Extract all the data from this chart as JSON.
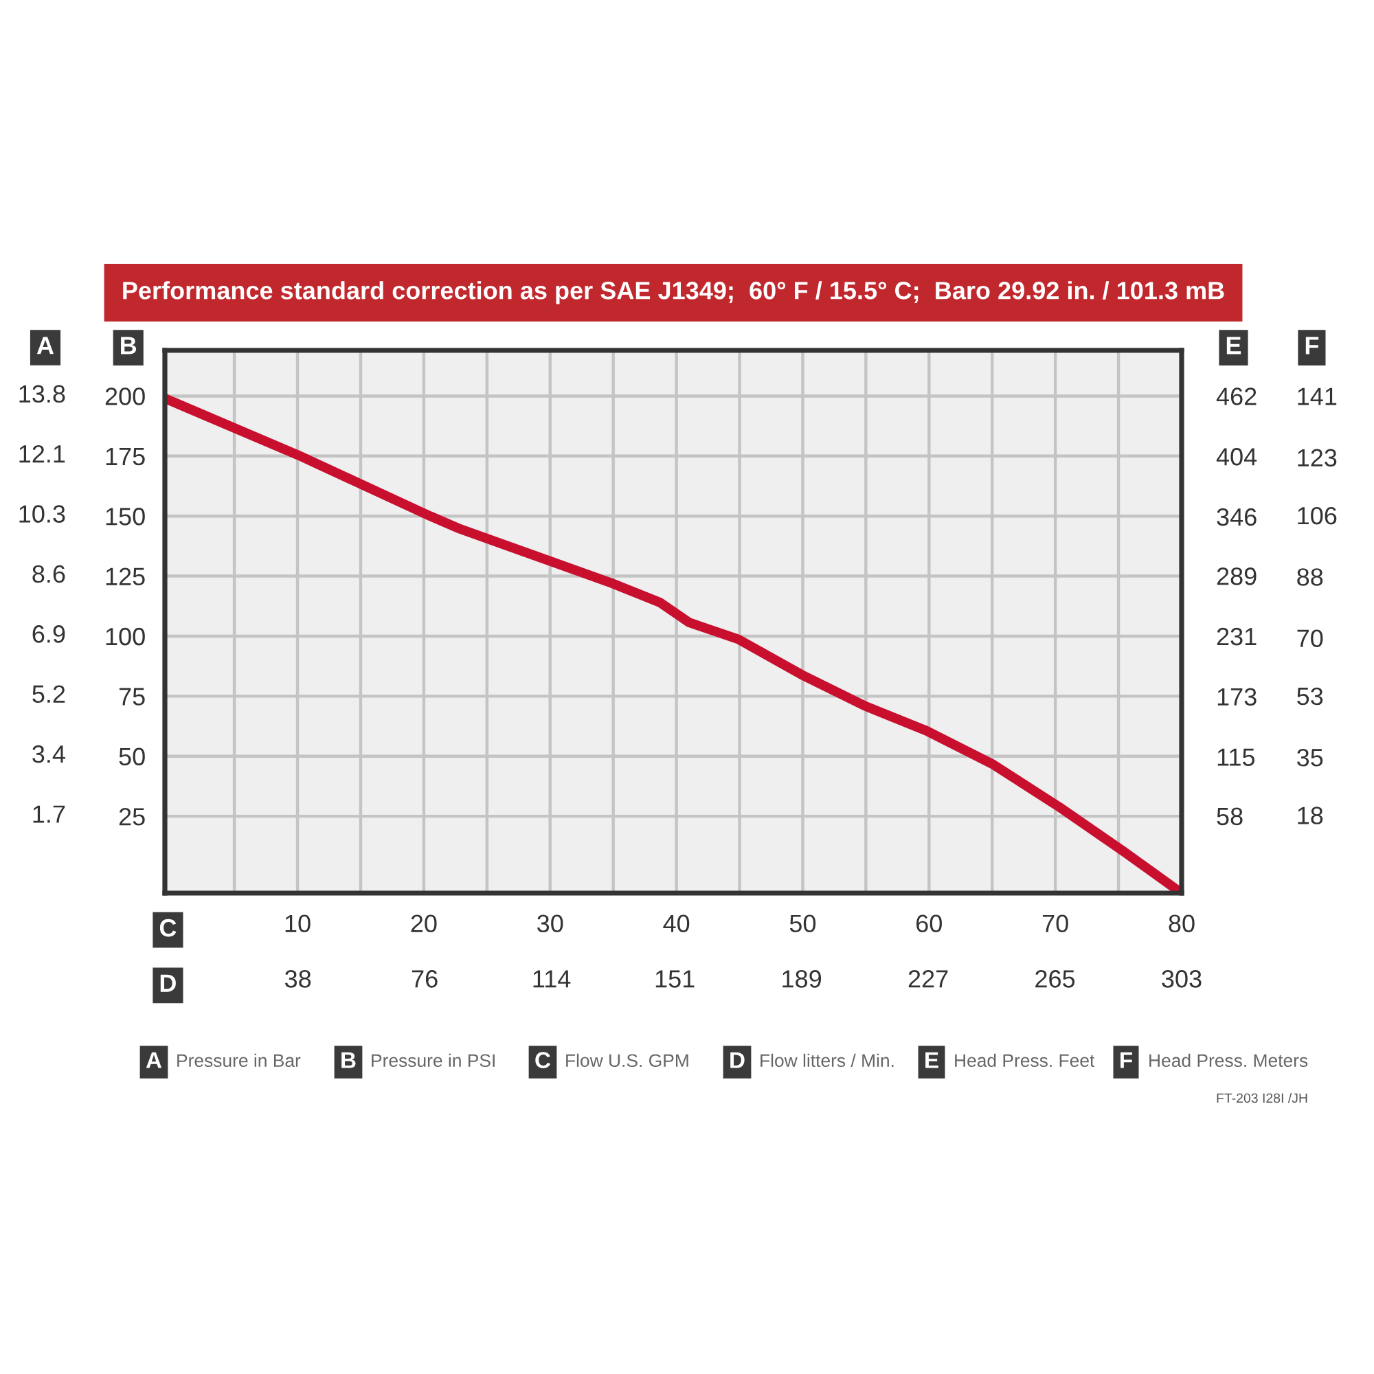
{
  "chart_data": {
    "type": "line",
    "title": "Performance standard correction as per SAE J1349;  60° F / 15.5° C;  Baro 29.92 in. / 101.3 mB",
    "xlabel": "C",
    "x2label": "D",
    "ylabel": "B",
    "y2label": "E",
    "y3label": "F",
    "series": [
      {
        "color": "#c8102e",
        "x": [
          -0.5,
          10,
          20.5,
          22.7,
          34.9,
          38.7,
          41,
          44.9,
          49.9,
          54.9,
          59.8,
          65,
          70.3,
          75.4,
          80
        ],
        "values": [
          199,
          175.5,
          150,
          145,
          122,
          114,
          105.7,
          98.7,
          84,
          71,
          60.6,
          46.8,
          28.9,
          10.4,
          -7
        ]
      }
    ],
    "xlim": [
      -0.5,
      80
    ],
    "xticks": [
      {
        "value": 5,
        "label": null
      },
      10,
      {
        "value": 15,
        "label": null
      },
      20,
      {
        "value": 25,
        "label": null
      },
      30,
      {
        "value": 35,
        "label": null
      },
      40,
      {
        "value": 45,
        "label": null
      },
      50,
      {
        "value": 55,
        "label": null
      },
      60,
      {
        "value": 65,
        "label": null
      },
      70,
      {
        "value": 75,
        "label": null
      },
      80
    ],
    "x2lim": [
      -1.9,
      303
    ],
    "x2ticks": [
      38,
      76,
      114,
      151,
      189,
      227,
      265,
      303
    ],
    "ylim": [
      -7,
      219
    ],
    "yticks": [
      25,
      50,
      75,
      100,
      125,
      150,
      175,
      200
    ],
    "y2lim": [
      -16.2,
      505.9
    ],
    "y2ticks": [
      58,
      115,
      173,
      231,
      289,
      346,
      404,
      462
    ],
    "y3lim": [
      -4.9,
      154.4
    ],
    "y3ticks": [
      18,
      35,
      53,
      70,
      88,
      106,
      123,
      141
    ],
    "grid": true,
    "marker": "none",
    "line_style": "solid",
    "annotations": [
      "A Pressure in Bar",
      "B Pressure in PSI",
      "C Flow U.S. GPM",
      "D Flow litters / Min.",
      "E Head Press. Feet",
      "F Head Press. Meters",
      "FT-203 I28I /JH",
      "A",
      "1.7",
      "3.4",
      "5.2",
      "6.9",
      "8.6",
      "10.3",
      "12.1",
      "13.8"
    ]
  }
}
